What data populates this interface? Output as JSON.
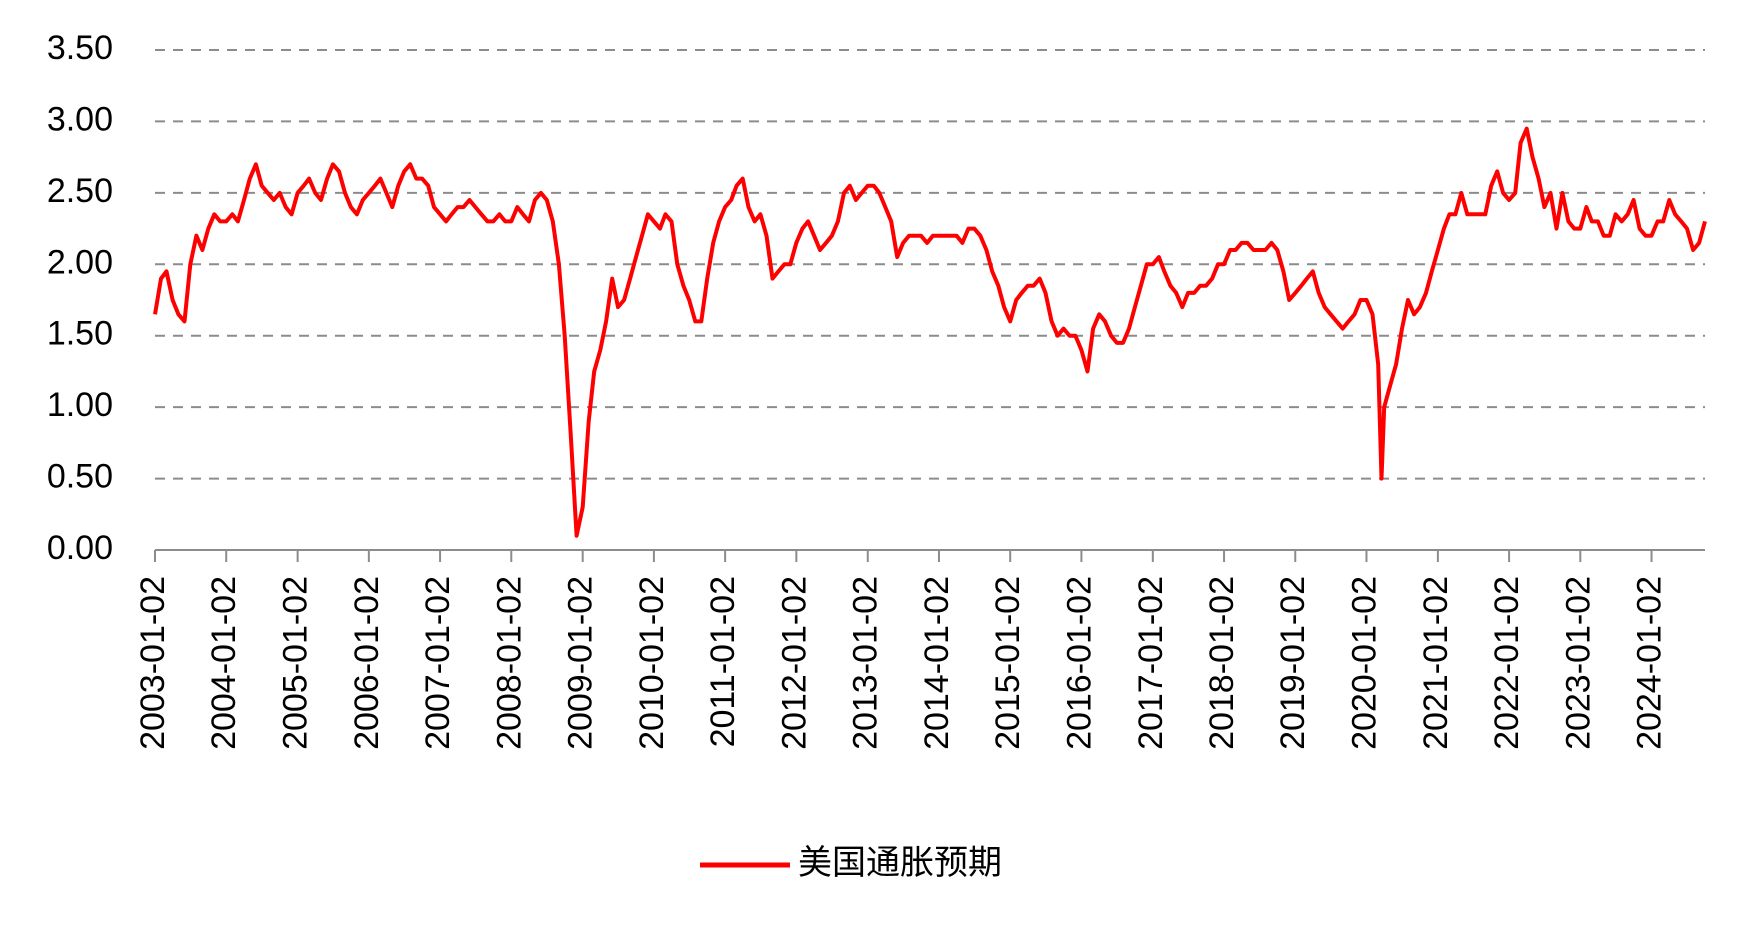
{
  "chart_data": {
    "type": "line",
    "x": [
      "2003-01-02",
      "2003-02-02",
      "2003-03-02",
      "2003-04-02",
      "2003-05-02",
      "2003-06-02",
      "2003-07-02",
      "2003-08-02",
      "2003-09-02",
      "2003-10-02",
      "2003-11-02",
      "2003-12-02",
      "2004-01-02",
      "2004-02-02",
      "2004-03-02",
      "2004-04-02",
      "2004-05-02",
      "2004-06-02",
      "2004-07-02",
      "2004-08-02",
      "2004-09-02",
      "2004-10-02",
      "2004-11-02",
      "2004-12-02",
      "2005-01-02",
      "2005-02-02",
      "2005-03-02",
      "2005-04-02",
      "2005-05-02",
      "2005-06-02",
      "2005-07-02",
      "2005-08-02",
      "2005-09-02",
      "2005-10-02",
      "2005-11-02",
      "2005-12-02",
      "2006-01-02",
      "2006-02-02",
      "2006-03-02",
      "2006-04-02",
      "2006-05-02",
      "2006-06-02",
      "2006-07-02",
      "2006-08-02",
      "2006-09-02",
      "2006-10-02",
      "2006-11-02",
      "2006-12-02",
      "2007-01-02",
      "2007-02-02",
      "2007-03-02",
      "2007-04-02",
      "2007-05-02",
      "2007-06-02",
      "2007-07-02",
      "2007-08-02",
      "2007-09-02",
      "2007-10-02",
      "2007-11-02",
      "2007-12-02",
      "2008-01-02",
      "2008-02-02",
      "2008-03-02",
      "2008-04-02",
      "2008-05-02",
      "2008-06-02",
      "2008-07-02",
      "2008-08-02",
      "2008-09-02",
      "2008-10-02",
      "2008-11-02",
      "2008-12-02",
      "2009-01-02",
      "2009-02-02",
      "2009-03-02",
      "2009-04-02",
      "2009-05-02",
      "2009-06-02",
      "2009-07-02",
      "2009-08-02",
      "2009-09-02",
      "2009-10-02",
      "2009-11-02",
      "2009-12-02",
      "2010-01-02",
      "2010-02-02",
      "2010-03-02",
      "2010-04-02",
      "2010-05-02",
      "2010-06-02",
      "2010-07-02",
      "2010-08-02",
      "2010-09-02",
      "2010-10-02",
      "2010-11-02",
      "2010-12-02",
      "2011-01-02",
      "2011-02-02",
      "2011-03-02",
      "2011-04-02",
      "2011-05-02",
      "2011-06-02",
      "2011-07-02",
      "2011-08-02",
      "2011-09-02",
      "2011-10-02",
      "2011-11-02",
      "2011-12-02",
      "2012-01-02",
      "2012-02-02",
      "2012-03-02",
      "2012-04-02",
      "2012-05-02",
      "2012-06-02",
      "2012-07-02",
      "2012-08-02",
      "2012-09-02",
      "2012-10-02",
      "2012-11-02",
      "2012-12-02",
      "2013-01-02",
      "2013-02-02",
      "2013-03-02",
      "2013-04-02",
      "2013-05-02",
      "2013-06-02",
      "2013-07-02",
      "2013-08-02",
      "2013-09-02",
      "2013-10-02",
      "2013-11-02",
      "2013-12-02",
      "2014-01-02",
      "2014-02-02",
      "2014-03-02",
      "2014-04-02",
      "2014-05-02",
      "2014-06-02",
      "2014-07-02",
      "2014-08-02",
      "2014-09-02",
      "2014-10-02",
      "2014-11-02",
      "2014-12-02",
      "2015-01-02",
      "2015-02-02",
      "2015-03-02",
      "2015-04-02",
      "2015-05-02",
      "2015-06-02",
      "2015-07-02",
      "2015-08-02",
      "2015-09-02",
      "2015-10-02",
      "2015-11-02",
      "2015-12-02",
      "2016-01-02",
      "2016-02-02",
      "2016-03-02",
      "2016-04-02",
      "2016-05-02",
      "2016-06-02",
      "2016-07-02",
      "2016-08-02",
      "2016-09-02",
      "2016-10-02",
      "2016-11-02",
      "2016-12-02",
      "2017-01-02",
      "2017-02-02",
      "2017-03-02",
      "2017-04-02",
      "2017-05-02",
      "2017-06-02",
      "2017-07-02",
      "2017-08-02",
      "2017-09-02",
      "2017-10-02",
      "2017-11-02",
      "2017-12-02",
      "2018-01-02",
      "2018-02-02",
      "2018-03-02",
      "2018-04-02",
      "2018-05-02",
      "2018-06-02",
      "2018-07-02",
      "2018-08-02",
      "2018-09-02",
      "2018-10-02",
      "2018-11-02",
      "2018-12-02",
      "2019-01-02",
      "2019-02-02",
      "2019-03-02",
      "2019-04-02",
      "2019-05-02",
      "2019-06-02",
      "2019-07-02",
      "2019-08-02",
      "2019-09-02",
      "2019-10-02",
      "2019-11-02",
      "2019-12-02",
      "2020-01-02",
      "2020-02-02",
      "2020-03-02",
      "2020-03-19",
      "2020-04-02",
      "2020-05-02",
      "2020-06-02",
      "2020-07-02",
      "2020-08-02",
      "2020-09-02",
      "2020-10-02",
      "2020-11-02",
      "2020-12-02",
      "2021-01-02",
      "2021-02-02",
      "2021-03-02",
      "2021-04-02",
      "2021-05-02",
      "2021-06-02",
      "2021-07-02",
      "2021-08-02",
      "2021-09-02",
      "2021-10-02",
      "2021-11-02",
      "2021-12-02",
      "2022-01-02",
      "2022-02-02",
      "2022-03-02",
      "2022-04-02",
      "2022-05-02",
      "2022-06-02",
      "2022-07-02",
      "2022-08-02",
      "2022-09-02",
      "2022-10-02",
      "2022-11-02",
      "2022-12-02",
      "2023-01-02",
      "2023-02-02",
      "2023-03-02",
      "2023-04-02",
      "2023-05-02",
      "2023-06-02",
      "2023-07-02",
      "2023-08-02",
      "2023-09-02",
      "2023-10-02",
      "2023-11-02",
      "2023-12-02",
      "2024-01-02",
      "2024-02-02",
      "2024-03-02",
      "2024-04-02",
      "2024-05-02",
      "2024-06-02",
      "2024-07-02",
      "2024-08-02",
      "2024-09-02",
      "2024-10-02"
    ],
    "series": [
      {
        "name": "美国通胀预期",
        "color": "#ff0000",
        "values": [
          1.65,
          1.9,
          1.95,
          1.75,
          1.65,
          1.6,
          2.0,
          2.2,
          2.1,
          2.25,
          2.35,
          2.3,
          2.3,
          2.35,
          2.3,
          2.45,
          2.6,
          2.7,
          2.55,
          2.5,
          2.45,
          2.5,
          2.4,
          2.35,
          2.5,
          2.55,
          2.6,
          2.5,
          2.45,
          2.6,
          2.7,
          2.65,
          2.5,
          2.4,
          2.35,
          2.45,
          2.5,
          2.55,
          2.6,
          2.5,
          2.4,
          2.55,
          2.65,
          2.7,
          2.6,
          2.6,
          2.55,
          2.4,
          2.35,
          2.3,
          2.35,
          2.4,
          2.4,
          2.45,
          2.4,
          2.35,
          2.3,
          2.3,
          2.35,
          2.3,
          2.3,
          2.4,
          2.35,
          2.3,
          2.45,
          2.5,
          2.45,
          2.3,
          2.0,
          1.5,
          0.8,
          0.1,
          0.3,
          0.9,
          1.25,
          1.4,
          1.6,
          1.9,
          1.7,
          1.75,
          1.9,
          2.05,
          2.2,
          2.35,
          2.3,
          2.25,
          2.35,
          2.3,
          2.0,
          1.85,
          1.75,
          1.6,
          1.6,
          1.9,
          2.15,
          2.3,
          2.4,
          2.45,
          2.55,
          2.6,
          2.4,
          2.3,
          2.35,
          2.2,
          1.9,
          1.95,
          2.0,
          2.0,
          2.15,
          2.25,
          2.3,
          2.2,
          2.1,
          2.15,
          2.2,
          2.3,
          2.5,
          2.55,
          2.45,
          2.5,
          2.55,
          2.55,
          2.5,
          2.4,
          2.3,
          2.05,
          2.15,
          2.2,
          2.2,
          2.2,
          2.15,
          2.2,
          2.2,
          2.2,
          2.2,
          2.2,
          2.15,
          2.25,
          2.25,
          2.2,
          2.1,
          1.95,
          1.85,
          1.7,
          1.6,
          1.75,
          1.8,
          1.85,
          1.85,
          1.9,
          1.8,
          1.6,
          1.5,
          1.55,
          1.5,
          1.5,
          1.4,
          1.25,
          1.55,
          1.65,
          1.6,
          1.5,
          1.45,
          1.45,
          1.55,
          1.7,
          1.85,
          2.0,
          2.0,
          2.05,
          1.95,
          1.85,
          1.8,
          1.7,
          1.8,
          1.8,
          1.85,
          1.85,
          1.9,
          2.0,
          2.0,
          2.1,
          2.1,
          2.15,
          2.15,
          2.1,
          2.1,
          2.1,
          2.15,
          2.1,
          1.95,
          1.75,
          1.8,
          1.85,
          1.9,
          1.95,
          1.8,
          1.7,
          1.65,
          1.6,
          1.55,
          1.6,
          1.65,
          1.75,
          1.75,
          1.65,
          1.3,
          0.5,
          1.0,
          1.15,
          1.3,
          1.55,
          1.75,
          1.65,
          1.7,
          1.8,
          1.95,
          2.1,
          2.25,
          2.35,
          2.35,
          2.5,
          2.35,
          2.35,
          2.35,
          2.35,
          2.55,
          2.65,
          2.5,
          2.45,
          2.5,
          2.85,
          2.95,
          2.75,
          2.6,
          2.4,
          2.5,
          2.25,
          2.5,
          2.3,
          2.25,
          2.25,
          2.4,
          2.3,
          2.3,
          2.2,
          2.2,
          2.35,
          2.3,
          2.35,
          2.45,
          2.25,
          2.2,
          2.2,
          2.3,
          2.3,
          2.45,
          2.35,
          2.3,
          2.25,
          2.1,
          2.15,
          2.3
        ]
      }
    ],
    "xlim": [
      "2003-01-02",
      "2024-10-02"
    ],
    "xticks": [
      "2003-01-02",
      "2004-01-02",
      "2005-01-02",
      "2006-01-02",
      "2007-01-02",
      "2008-01-02",
      "2009-01-02",
      "2010-01-02",
      "2011-01-02",
      "2012-01-02",
      "2013-01-02",
      "2014-01-02",
      "2015-01-02",
      "2016-01-02",
      "2017-01-02",
      "2018-01-02",
      "2019-01-02",
      "2020-01-02",
      "2021-01-02",
      "2022-01-02",
      "2023-01-02",
      "2024-01-02"
    ],
    "ylim": [
      0,
      3.5
    ],
    "yticks": [
      {
        "value": 0,
        "label": "0.00"
      },
      {
        "value": 0.5,
        "label": "0.50"
      },
      {
        "value": 1,
        "label": "1.00"
      },
      {
        "value": 1.5,
        "label": "1.50"
      },
      {
        "value": 2,
        "label": "2.00"
      },
      {
        "value": 2.5,
        "label": "2.50"
      },
      {
        "value": 3,
        "label": "3.00"
      },
      {
        "value": 3.5,
        "label": "3.50"
      }
    ],
    "grid": true,
    "legend": "bottom"
  }
}
